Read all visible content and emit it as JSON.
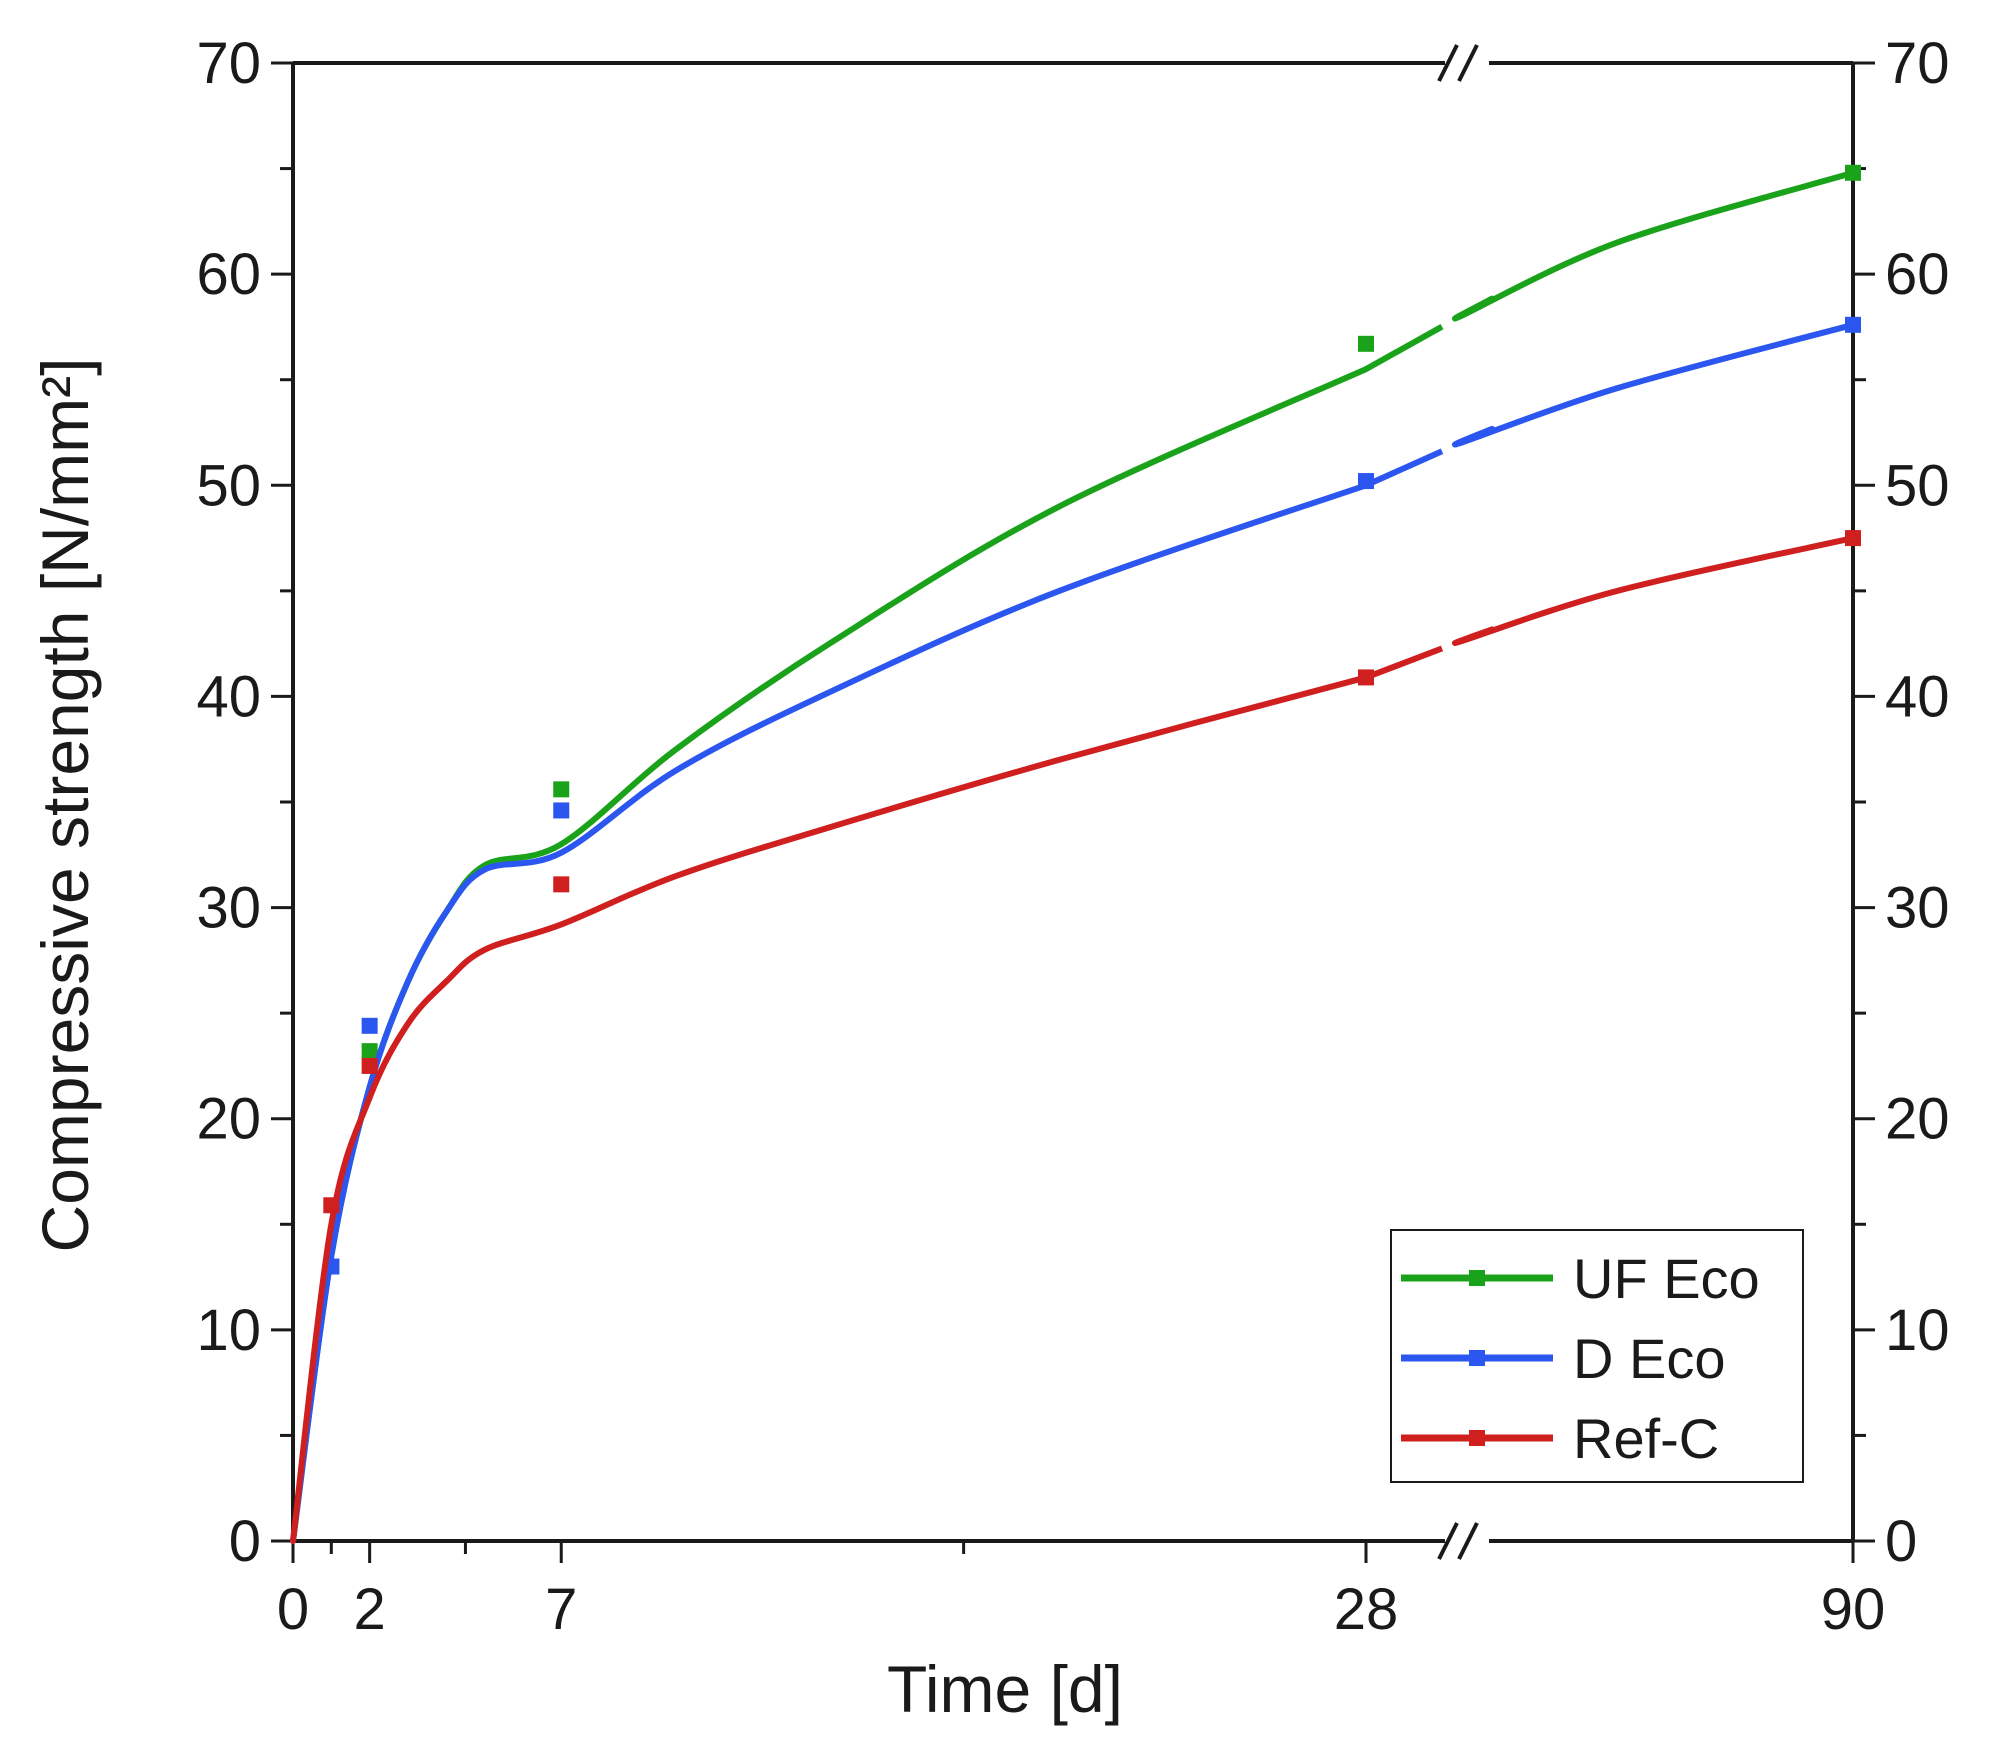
{
  "chart_data": {
    "type": "line",
    "xlabel": "Time [d]",
    "ylabel": "Compressive strength [N/mm²]",
    "ylim": [
      0,
      70
    ],
    "y_ticks": [
      0,
      10,
      20,
      30,
      40,
      50,
      60,
      70
    ],
    "x_tick_labels": [
      "0",
      "2",
      "7",
      "28",
      "90"
    ],
    "x_axis_note": "broken axis between 28 and 90 days",
    "legend_position": "bottom-right",
    "series": [
      {
        "name": "UF Eco",
        "color": "#1aa31a",
        "points": [
          [
            1,
            13.0
          ],
          [
            2,
            23.2
          ],
          [
            7,
            35.6
          ],
          [
            28,
            56.7
          ],
          [
            90,
            64.8
          ]
        ],
        "fit": [
          [
            0,
            0
          ],
          [
            1,
            13.5
          ],
          [
            2,
            21.5
          ],
          [
            3,
            26.5
          ],
          [
            4,
            29.8
          ],
          [
            5,
            32.0
          ],
          [
            7,
            33.0
          ],
          [
            10,
            37.5
          ],
          [
            14,
            42.5
          ],
          [
            20,
            49.0
          ],
          [
            28,
            55.5
          ],
          [
            40,
            58.0
          ],
          [
            60,
            61.5
          ],
          [
            90,
            64.8
          ]
        ]
      },
      {
        "name": "D Eco",
        "color": "#2b57f0",
        "points": [
          [
            1,
            13.0
          ],
          [
            2,
            24.4
          ],
          [
            7,
            34.6
          ],
          [
            28,
            50.2
          ],
          [
            90,
            57.6
          ]
        ],
        "fit": [
          [
            0,
            0
          ],
          [
            1,
            13.5
          ],
          [
            2,
            21.5
          ],
          [
            3,
            26.5
          ],
          [
            4,
            29.8
          ],
          [
            5,
            31.8
          ],
          [
            7,
            32.6
          ],
          [
            10,
            36.5
          ],
          [
            14,
            40.2
          ],
          [
            20,
            45.0
          ],
          [
            28,
            50.0
          ],
          [
            40,
            52.0
          ],
          [
            60,
            54.6
          ],
          [
            90,
            57.6
          ]
        ]
      },
      {
        "name": "Ref-C",
        "color": "#d01f1f",
        "points": [
          [
            1,
            15.9
          ],
          [
            2,
            22.5
          ],
          [
            7,
            31.1
          ],
          [
            28,
            40.9
          ],
          [
            90,
            47.5
          ]
        ],
        "fit": [
          [
            0,
            0
          ],
          [
            1,
            15.0
          ],
          [
            2,
            21.0
          ],
          [
            3,
            24.5
          ],
          [
            4,
            26.5
          ],
          [
            5,
            28.0
          ],
          [
            7,
            29.2
          ],
          [
            10,
            31.5
          ],
          [
            14,
            33.8
          ],
          [
            20,
            37.0
          ],
          [
            28,
            40.9
          ],
          [
            40,
            42.6
          ],
          [
            60,
            45.0
          ],
          [
            90,
            47.5
          ]
        ]
      }
    ]
  }
}
